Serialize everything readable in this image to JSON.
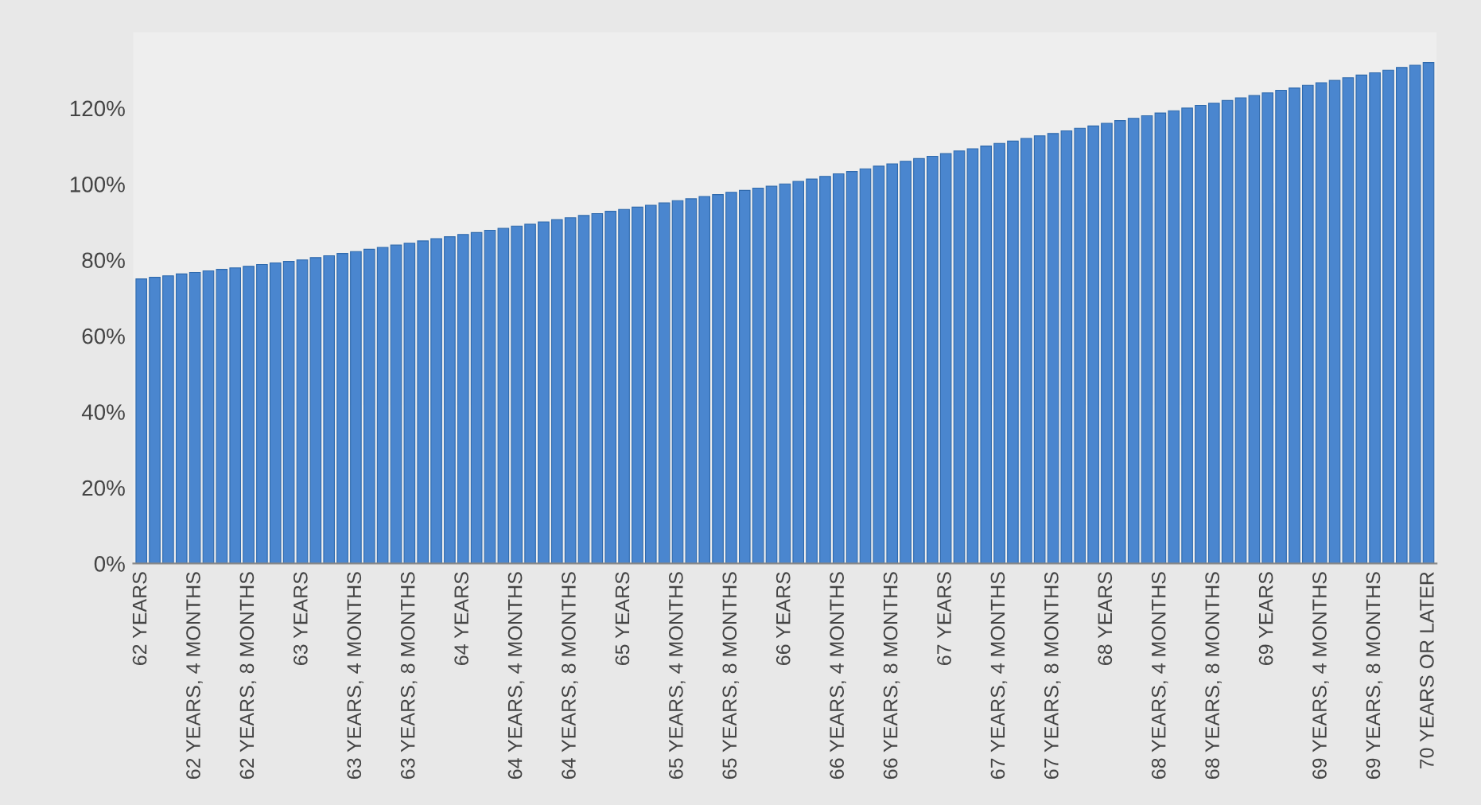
{
  "chart_data": {
    "type": "bar",
    "categories": [
      "62 YEARS",
      null,
      null,
      null,
      "62 YEARS, 4 MONTHS",
      null,
      null,
      null,
      "62 YEARS, 8 MONTHS",
      null,
      null,
      null,
      "63 YEARS",
      null,
      null,
      null,
      "63 YEARS, 4 MONTHS",
      null,
      null,
      null,
      "63 YEARS, 8 MONTHS",
      null,
      null,
      null,
      "64 YEARS",
      null,
      null,
      null,
      "64 YEARS, 4 MONTHS",
      null,
      null,
      null,
      "64 YEARS, 8 MONTHS",
      null,
      null,
      null,
      "65 YEARS",
      null,
      null,
      null,
      "65 YEARS, 4 MONTHS",
      null,
      null,
      null,
      "65 YEARS, 8 MONTHS",
      null,
      null,
      null,
      "66 YEARS",
      null,
      null,
      null,
      "66 YEARS, 4 MONTHS",
      null,
      null,
      null,
      "66 YEARS, 8 MONTHS",
      null,
      null,
      null,
      "67 YEARS",
      null,
      null,
      null,
      "67 YEARS, 4 MONTHS",
      null,
      null,
      null,
      "67 YEARS, 8 MONTHS",
      null,
      null,
      null,
      "68 YEARS",
      null,
      null,
      null,
      "68 YEARS, 4 MONTHS",
      null,
      null,
      null,
      "68 YEARS, 8 MONTHS",
      null,
      null,
      null,
      "69 YEARS",
      null,
      null,
      null,
      "69 YEARS, 4 MONTHS",
      null,
      null,
      null,
      "69 YEARS, 8 MONTHS",
      null,
      null,
      null,
      "70 YEARS OR LATER"
    ],
    "values": [
      75,
      75.4,
      75.8,
      76.3,
      76.7,
      77.1,
      77.5,
      77.9,
      78.3,
      78.8,
      79.2,
      79.6,
      80,
      80.6,
      81.1,
      81.7,
      82.2,
      82.8,
      83.3,
      83.9,
      84.4,
      85,
      85.6,
      86.1,
      86.7,
      87.2,
      87.8,
      88.3,
      88.9,
      89.4,
      90,
      90.6,
      91.1,
      91.7,
      92.2,
      92.8,
      93.3,
      93.9,
      94.4,
      95,
      95.6,
      96.1,
      96.7,
      97.2,
      97.8,
      98.3,
      98.9,
      99.4,
      100,
      100.7,
      101.3,
      102,
      102.7,
      103.3,
      104,
      104.7,
      105.3,
      106,
      106.7,
      107.3,
      108,
      108.7,
      109.3,
      110,
      110.7,
      111.3,
      112,
      112.7,
      113.3,
      114,
      114.7,
      115.3,
      116,
      116.7,
      117.3,
      118,
      118.7,
      119.3,
      120,
      120.7,
      121.3,
      122,
      122.7,
      123.3,
      124,
      124.7,
      125.3,
      126,
      126.7,
      127.3,
      128,
      128.7,
      129.3,
      130,
      130.7,
      131.3,
      132
    ],
    "color": "#4a86cf",
    "ylim": [
      0,
      140
    ],
    "yticks": [
      {
        "value": 0,
        "label": "0%"
      },
      {
        "value": 20,
        "label": "20%"
      },
      {
        "value": 40,
        "label": "40%"
      },
      {
        "value": 60,
        "label": "60%"
      },
      {
        "value": 80,
        "label": "80%"
      },
      {
        "value": 100,
        "label": "100%"
      },
      {
        "value": 120,
        "label": "120%"
      }
    ]
  }
}
